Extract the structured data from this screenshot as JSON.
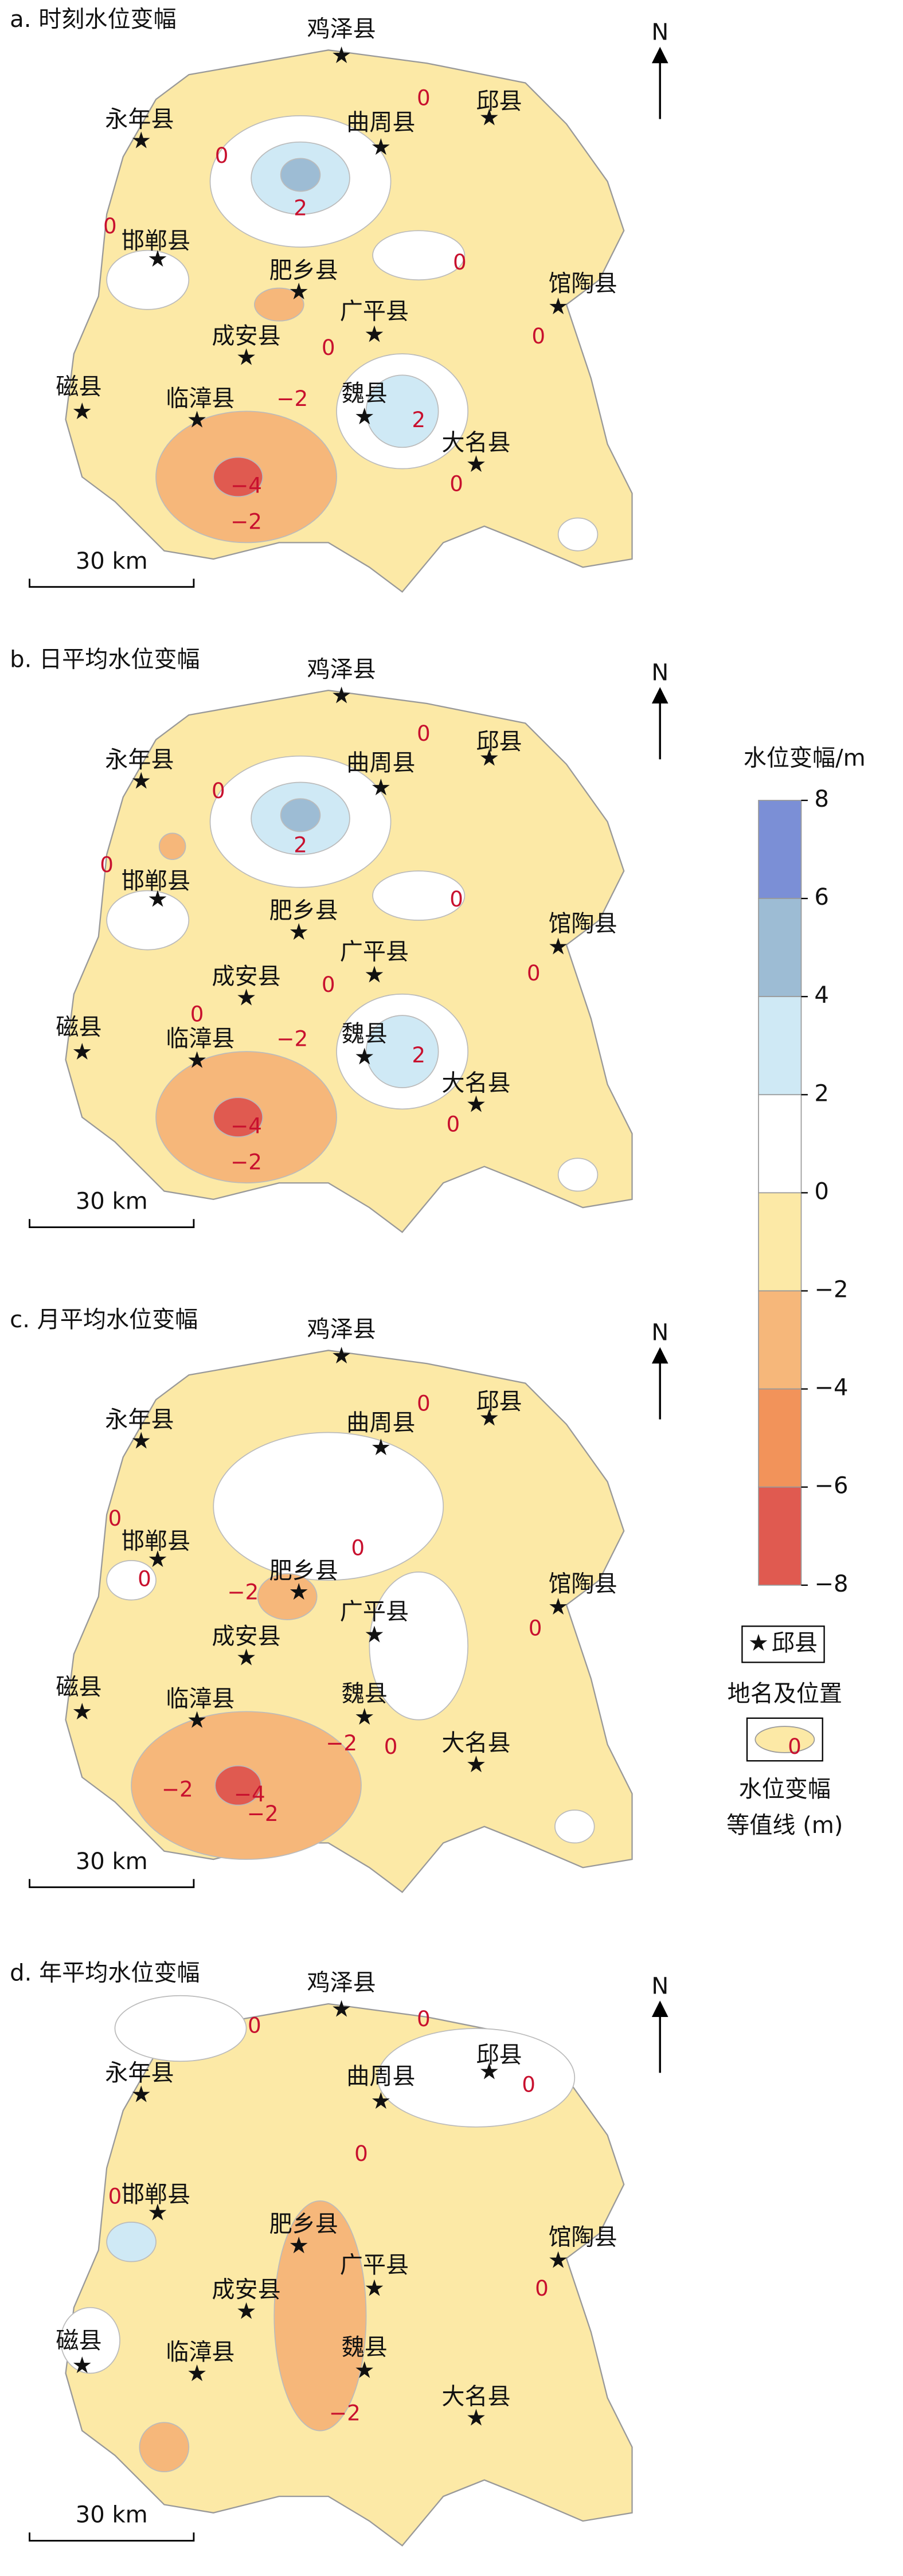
{
  "panels": [
    {
      "title": "a. 时刻水位变幅",
      "north": "N",
      "scale_bar": "30 km",
      "contour_labels": [
        "0",
        "0",
        "2",
        "0",
        "0",
        "0",
        "0",
        "−2",
        "−4",
        "−2",
        "2",
        "0"
      ]
    },
    {
      "title": "b. 日平均水位变幅",
      "north": "N",
      "scale_bar": "30 km",
      "contour_labels": [
        "0",
        "0",
        "2",
        "0",
        "0",
        "0",
        "0",
        "0",
        "−2",
        "−4",
        "−2",
        "2",
        "0"
      ]
    },
    {
      "title": "c. 月平均水位变幅",
      "north": "N",
      "scale_bar": "30 km",
      "contour_labels": [
        "0",
        "0",
        "0",
        "−2",
        "0",
        "0",
        "−2",
        "0",
        "−2",
        "−4",
        "−2"
      ]
    },
    {
      "title": "d. 年平均水位变幅",
      "north": "N",
      "scale_bar": "30 km",
      "contour_labels": [
        "0",
        "0",
        "0",
        "0",
        "0",
        "0",
        "−2"
      ]
    }
  ],
  "cities": [
    "鸡泽县",
    "永年县",
    "曲周县",
    "邱县",
    "邯郸县",
    "肥乡县",
    "广平县",
    "馆陶县",
    "成安县",
    "磁县",
    "临漳县",
    "魏县",
    "大名县"
  ],
  "legend": {
    "title": "水位变幅/m",
    "ticks": [
      8,
      6,
      4,
      2,
      0,
      {
        "value": -2,
        "label": "−2"
      },
      {
        "value": -4,
        "label": "−4"
      },
      {
        "value": -6,
        "label": "−6"
      },
      {
        "value": -8,
        "label": "−8"
      }
    ],
    "colors": [
      "#7b8fd6",
      "#9dbcd4",
      "#cfe9f5",
      "#ffffff",
      "#fce9a6",
      "#f6b77a",
      "#f2935a",
      "#e05a50"
    ],
    "place_symbol_label": "邱县",
    "place_caption": "地名及位置",
    "contour_sample_label": "0",
    "contour_caption_1": "水位变幅",
    "contour_caption_2": "等值线 (m)"
  }
}
